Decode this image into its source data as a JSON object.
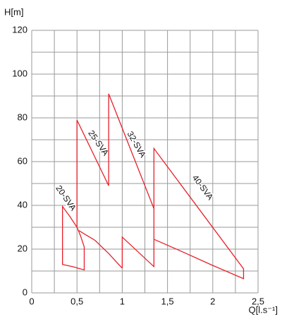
{
  "chart_data": {
    "type": "line",
    "ylabel": "H[m]",
    "xlabel": "Q[l.s⁻¹]",
    "xlim": [
      0,
      2.5
    ],
    "ylim": [
      0,
      120
    ],
    "xticks": [
      0,
      {
        "value": 0.5,
        "label": "0,5"
      },
      1,
      {
        "value": 1.5,
        "label": "1,5"
      },
      2,
      {
        "value": 2.5,
        "label": "2,5"
      }
    ],
    "yticks": [
      0,
      20,
      40,
      60,
      80,
      100,
      120
    ],
    "grid": true,
    "minor_grid": true,
    "series": [
      {
        "name": "20-SVA",
        "color": "#e8202a",
        "x": [
          0.58,
          0.54,
          0.5,
          0.42,
          0.34,
          0.34,
          0.45,
          0.58,
          0.58
        ],
        "values": [
          21,
          26,
          30,
          35,
          39.5,
          13,
          12,
          10.5,
          21
        ]
      },
      {
        "name": "25-SVA",
        "color": "#e8202a",
        "x": [
          0.5,
          0.5,
          0.85,
          null,
          0.52,
          0.7,
          0.85,
          0.95,
          1.0
        ],
        "values": [
          30,
          79,
          49,
          null,
          28.5,
          24,
          18,
          13.5,
          11.3
        ]
      },
      {
        "name": "32-SVA",
        "color": "#e8202a",
        "x": [
          0.85,
          0.85,
          1.35,
          1.35,
          1.0,
          1.0
        ],
        "values": [
          49,
          91,
          38.5,
          12,
          25.5,
          11.3
        ]
      },
      {
        "name": "40-SVA",
        "color": "#e8202a",
        "x": [
          1.35,
          1.35,
          2.34,
          2.34,
          1.98,
          1.67,
          1.35
        ],
        "values": [
          38.5,
          66,
          11,
          6.5,
          12.9,
          18.7,
          24.5
        ]
      }
    ]
  }
}
